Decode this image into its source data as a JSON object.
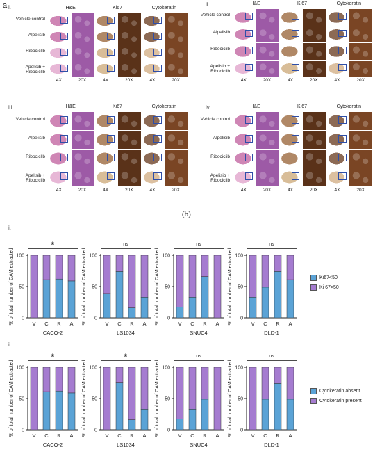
{
  "panel_a_label": "a",
  "panel_b_label": "(b)",
  "quadrants": [
    {
      "roman": "i.",
      "rows": [
        "Vehicle control",
        "Alpelisib",
        "Ribociclib",
        "Apelisib +\nRibociclib"
      ]
    },
    {
      "roman": "ii.",
      "rows": [
        "Vehicle control",
        "Alpelisib",
        "Ribociclib",
        "Apelisib +\nRibociclib"
      ]
    },
    {
      "roman": "iii.",
      "rows": [
        "Vehicle control",
        "Alpelisib",
        "Ribociclib",
        "Apelisib +\nRibociclib"
      ]
    },
    {
      "roman": "iv.",
      "rows": [
        "Vehicle control",
        "Alpelisib",
        "Ribociclib",
        "Apelisib +\nRibociclib"
      ]
    }
  ],
  "stain_headers": [
    "H&E",
    "Ki67",
    "Cytokeratin"
  ],
  "mag_labels": [
    "4X",
    "20X",
    "4X",
    "20X",
    "4X",
    "20X"
  ],
  "colors": {
    "he_pink": "#d48bb9",
    "he_purple": "#8a4f9e",
    "ki67_brown": "#6b3f22",
    "ki67_tan": "#c9a277",
    "ck_brown": "#8b5a33",
    "series_blue": "#5ba3d6",
    "series_purple": "#a57cd0",
    "roi_box": "#2f4fa8"
  },
  "row_labels_b": [
    "i.",
    "ii."
  ],
  "chart_data": [
    {
      "type": "bar",
      "stacked": true,
      "row": "i.",
      "title": "CACO-2",
      "ylabel": "% of total number of CAM extracted",
      "categories": [
        "V",
        "C",
        "R",
        "A"
      ],
      "ylim": [
        0,
        100
      ],
      "yticks": [
        0,
        50,
        100
      ],
      "significance": "*",
      "series": [
        {
          "name": "Ki67<50",
          "values": [
            0,
            61,
            62,
            59
          ]
        },
        {
          "name": "Ki 67>50",
          "values": [
            100,
            39,
            38,
            41
          ]
        }
      ]
    },
    {
      "type": "bar",
      "stacked": true,
      "row": "i.",
      "title": "LS1034",
      "ylabel": "% of total number of CAM extracted",
      "categories": [
        "V",
        "C",
        "R",
        "A"
      ],
      "ylim": [
        0,
        100
      ],
      "yticks": [
        0,
        50,
        100
      ],
      "significance": "ns",
      "series": [
        {
          "name": "Ki67<50",
          "values": [
            39,
            74,
            16,
            33
          ]
        },
        {
          "name": "Ki 67>50",
          "values": [
            61,
            26,
            84,
            67
          ]
        }
      ]
    },
    {
      "type": "bar",
      "stacked": true,
      "row": "i.",
      "title": "SNUC4",
      "ylabel": "% of total number of CAM extracted",
      "categories": [
        "V",
        "C",
        "R",
        "A"
      ],
      "ylim": [
        0,
        100
      ],
      "yticks": [
        0,
        50,
        100
      ],
      "significance": "ns",
      "series": [
        {
          "name": "Ki67<50",
          "values": [
            17,
            33,
            66,
            0
          ]
        },
        {
          "name": "Ki 67>50",
          "values": [
            83,
            67,
            34,
            100
          ]
        }
      ]
    },
    {
      "type": "bar",
      "stacked": true,
      "row": "i.",
      "title": "DLD-1",
      "ylabel": "% of total number of CAM extracted",
      "categories": [
        "V",
        "C",
        "R",
        "A"
      ],
      "ylim": [
        0,
        100
      ],
      "yticks": [
        0,
        50,
        100
      ],
      "significance": "ns",
      "series": [
        {
          "name": "Ki67<50",
          "values": [
            33,
            49,
            74,
            61
          ]
        },
        {
          "name": "Ki 67>50",
          "values": [
            67,
            51,
            26,
            39
          ]
        }
      ]
    },
    {
      "type": "bar",
      "stacked": true,
      "row": "ii.",
      "title": "CACO-2",
      "ylabel": "% of total number of CAM extracted",
      "categories": [
        "V",
        "C",
        "R",
        "A"
      ],
      "ylim": [
        0,
        100
      ],
      "yticks": [
        0,
        50,
        100
      ],
      "significance": "*",
      "series": [
        {
          "name": "Cytokeratin absent",
          "values": [
            0,
            61,
            62,
            59
          ]
        },
        {
          "name": "Cytokeratin present",
          "values": [
            100,
            39,
            38,
            41
          ]
        }
      ]
    },
    {
      "type": "bar",
      "stacked": true,
      "row": "ii.",
      "title": "LS1034",
      "ylabel": "% of total number of CAM extracted",
      "categories": [
        "V",
        "C",
        "R",
        "A"
      ],
      "ylim": [
        0,
        100
      ],
      "yticks": [
        0,
        50,
        100
      ],
      "significance": "*",
      "series": [
        {
          "name": "Cytokeratin absent",
          "values": [
            0,
            76,
            16,
            33
          ]
        },
        {
          "name": "Cytokeratin present",
          "values": [
            100,
            24,
            84,
            67
          ]
        }
      ]
    },
    {
      "type": "bar",
      "stacked": true,
      "row": "ii.",
      "title": "SNUC4",
      "ylabel": "% of total number of CAM extracted",
      "categories": [
        "V",
        "C",
        "R",
        "A"
      ],
      "ylim": [
        0,
        100
      ],
      "yticks": [
        0,
        50,
        100
      ],
      "significance": "ns",
      "series": [
        {
          "name": "Cytokeratin absent",
          "values": [
            17,
            33,
            49,
            0
          ]
        },
        {
          "name": "Cytokeratin present",
          "values": [
            83,
            67,
            51,
            100
          ]
        }
      ]
    },
    {
      "type": "bar",
      "stacked": true,
      "row": "ii.",
      "title": "DLD-1",
      "ylabel": "% of total number of CAM extracted",
      "categories": [
        "V",
        "C",
        "R",
        "A"
      ],
      "ylim": [
        0,
        100
      ],
      "yticks": [
        0,
        50,
        100
      ],
      "significance": "ns",
      "series": [
        {
          "name": "Cytokeratin absent",
          "values": [
            0,
            49,
            74,
            49
          ]
        },
        {
          "name": "Cytokeratin present",
          "values": [
            100,
            51,
            26,
            51
          ]
        }
      ]
    }
  ],
  "legends": [
    {
      "items": [
        "Ki67<50",
        "Ki 67>50"
      ]
    },
    {
      "items": [
        "Cytokeratin absent",
        "Cytokeratin present"
      ]
    }
  ]
}
